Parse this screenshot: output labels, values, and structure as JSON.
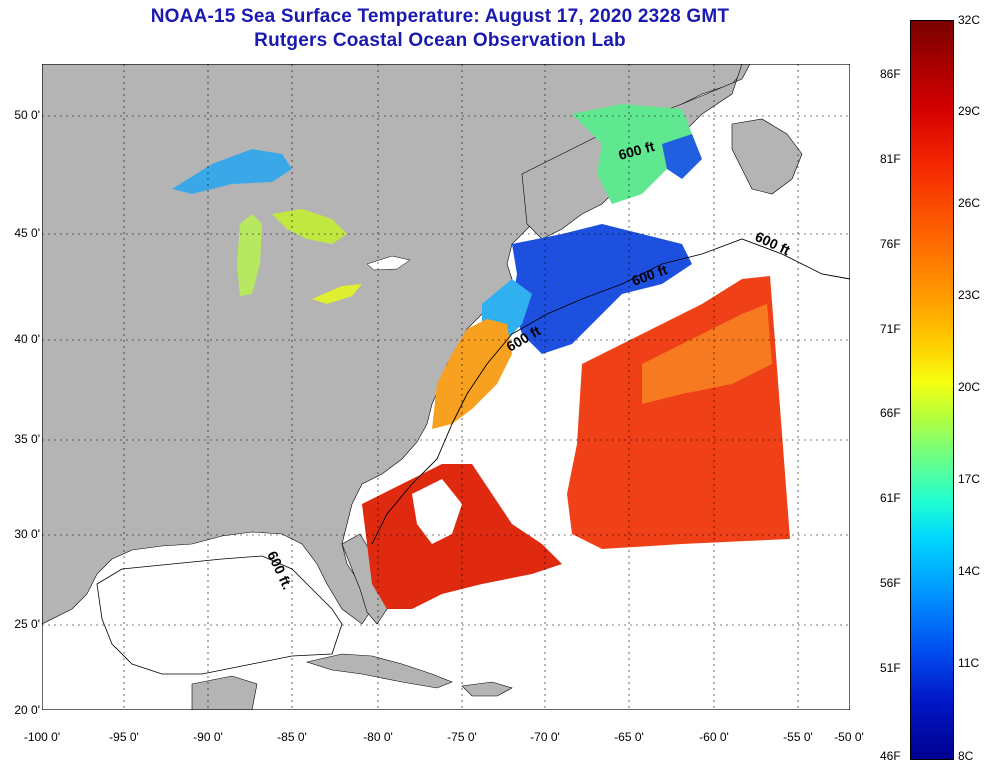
{
  "title": {
    "line1": "NOAA-15 Sea Surface Temperature:  August 17, 2020 2328 GMT",
    "line2": "Rutgers Coastal Ocean Observation Lab"
  },
  "map": {
    "latitude_labels": [
      "50 0'",
      "45 0'",
      "40 0'",
      "35 0'",
      "30 0'",
      "25 0'",
      "20 0'"
    ],
    "longitude_labels": [
      "-100 0'",
      "-95 0'",
      "-90 0'",
      "-85 0'",
      "-80 0'",
      "-75 0'",
      "-70 0'",
      "-65 0'",
      "-60 0'",
      "-55 0'",
      "-50 0'"
    ],
    "contour_label": "600 ft",
    "contour_label_gulf": "600 ft."
  },
  "colorbar": {
    "celsius_labels": [
      "32C",
      "29C",
      "26C",
      "23C",
      "20C",
      "17C",
      "14C",
      "11C",
      "8C"
    ],
    "fahrenheit_labels": [
      "86F",
      "81F",
      "76F",
      "71F",
      "66F",
      "61F",
      "56F",
      "51F",
      "46F"
    ]
  },
  "colors": {
    "land": "#b4b4b4",
    "water_no_data": "#ffffff",
    "title": "#1a1ab0"
  }
}
